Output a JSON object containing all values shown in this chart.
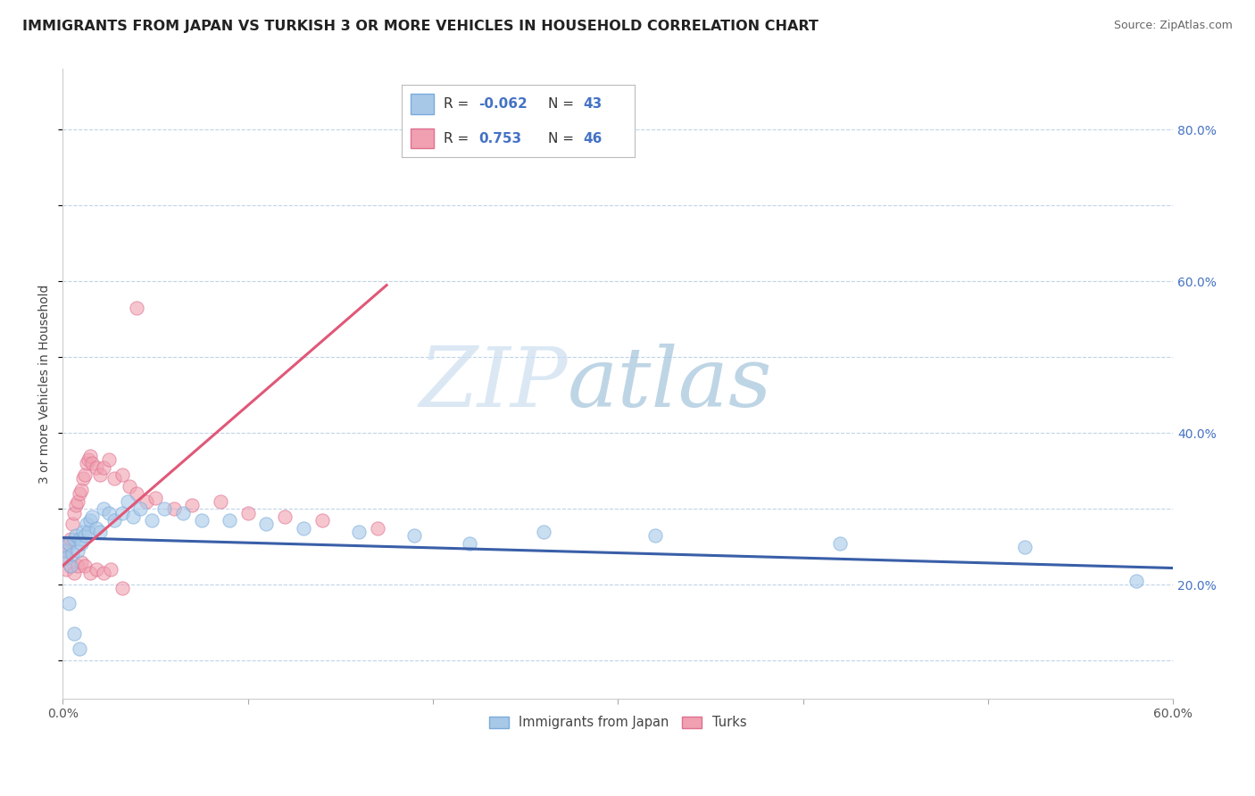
{
  "title": "IMMIGRANTS FROM JAPAN VS TURKISH 3 OR MORE VEHICLES IN HOUSEHOLD CORRELATION CHART",
  "source": "Source: ZipAtlas.com",
  "ylabel": "3 or more Vehicles in Household",
  "xmin": 0.0,
  "xmax": 0.6,
  "ymin": 0.05,
  "ymax": 0.88,
  "y_ticks_right": [
    0.2,
    0.4,
    0.6,
    0.8
  ],
  "y_tick_labels_right": [
    "20.0%",
    "40.0%",
    "60.0%",
    "80.0%"
  ],
  "japan_scatter_x": [
    0.001,
    0.002,
    0.003,
    0.004,
    0.005,
    0.006,
    0.007,
    0.008,
    0.009,
    0.01,
    0.011,
    0.012,
    0.013,
    0.014,
    0.015,
    0.016,
    0.018,
    0.02,
    0.022,
    0.025,
    0.028,
    0.032,
    0.035,
    0.038,
    0.042,
    0.048,
    0.055,
    0.065,
    0.075,
    0.09,
    0.11,
    0.13,
    0.16,
    0.19,
    0.22,
    0.26,
    0.32,
    0.42,
    0.52,
    0.58,
    0.003,
    0.006,
    0.009
  ],
  "japan_scatter_y": [
    0.245,
    0.235,
    0.255,
    0.225,
    0.24,
    0.26,
    0.265,
    0.245,
    0.26,
    0.255,
    0.27,
    0.265,
    0.28,
    0.27,
    0.285,
    0.29,
    0.275,
    0.27,
    0.3,
    0.295,
    0.285,
    0.295,
    0.31,
    0.29,
    0.3,
    0.285,
    0.3,
    0.295,
    0.285,
    0.285,
    0.28,
    0.275,
    0.27,
    0.265,
    0.255,
    0.27,
    0.265,
    0.255,
    0.25,
    0.205,
    0.175,
    0.135,
    0.115
  ],
  "turks_scatter_x": [
    0.0,
    0.001,
    0.002,
    0.003,
    0.004,
    0.005,
    0.006,
    0.007,
    0.008,
    0.009,
    0.01,
    0.011,
    0.012,
    0.013,
    0.014,
    0.015,
    0.016,
    0.018,
    0.02,
    0.022,
    0.025,
    0.028,
    0.032,
    0.036,
    0.04,
    0.045,
    0.05,
    0.06,
    0.07,
    0.085,
    0.1,
    0.12,
    0.14,
    0.17,
    0.002,
    0.004,
    0.006,
    0.008,
    0.01,
    0.012,
    0.015,
    0.018,
    0.022,
    0.026,
    0.032,
    0.04
  ],
  "turks_scatter_y": [
    0.245,
    0.235,
    0.245,
    0.255,
    0.26,
    0.28,
    0.295,
    0.305,
    0.31,
    0.32,
    0.325,
    0.34,
    0.345,
    0.36,
    0.365,
    0.37,
    0.36,
    0.355,
    0.345,
    0.355,
    0.365,
    0.34,
    0.345,
    0.33,
    0.32,
    0.31,
    0.315,
    0.3,
    0.305,
    0.31,
    0.295,
    0.29,
    0.285,
    0.275,
    0.22,
    0.225,
    0.215,
    0.225,
    0.23,
    0.225,
    0.215,
    0.22,
    0.215,
    0.22,
    0.195,
    0.565
  ],
  "japan_line_x": [
    0.0,
    0.6
  ],
  "japan_line_y": [
    0.262,
    0.222
  ],
  "turks_line_x": [
    0.0,
    0.175
  ],
  "turks_line_y": [
    0.225,
    0.595
  ],
  "watermark_zip": "ZIP",
  "watermark_atlas": "atlas",
  "background_color": "#ffffff",
  "scatter_alpha": 0.6,
  "scatter_size": 120,
  "japan_color": "#a8c8e8",
  "japan_edge_color": "#7aabdc",
  "turks_color": "#f0a0b0",
  "turks_edge_color": "#e07090",
  "japan_line_color": "#3a5fa8",
  "turks_line_color": "#e05878",
  "grid_color": "#c0d4e8",
  "title_fontsize": 11.5,
  "axis_label_fontsize": 10
}
